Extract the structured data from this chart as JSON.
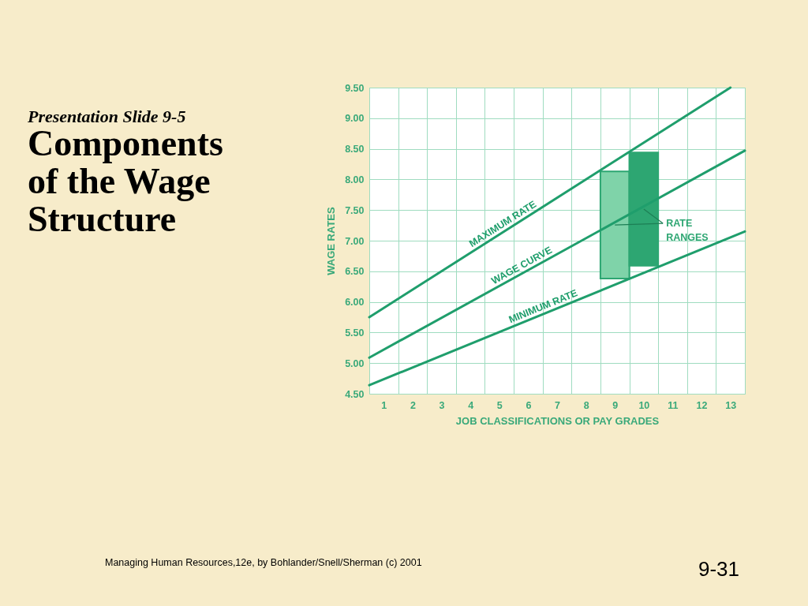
{
  "chart_data": {
    "type": "line",
    "title": "Components of the Wage Structure",
    "subtitle": "Presentation Slide 9-5",
    "xlabel": "JOB CLASSIFICATIONS OR PAY GRADES",
    "ylabel": "WAGE RATES",
    "xlim": [
      0.5,
      13.5
    ],
    "xticks": [
      {
        "value": 0.5,
        "label": null
      },
      1,
      {
        "value": 1.5,
        "label": null
      },
      2,
      {
        "value": 2.5,
        "label": null
      },
      3,
      {
        "value": 3.5,
        "label": null
      },
      4,
      {
        "value": 4.5,
        "label": null
      },
      5,
      {
        "value": 5.5,
        "label": null
      },
      6,
      {
        "value": 6.5,
        "label": null
      },
      7,
      {
        "value": 7.5,
        "label": null
      },
      8,
      {
        "value": 8.5,
        "label": null
      },
      9,
      {
        "value": 9.5,
        "label": null
      },
      10,
      {
        "value": 10.5,
        "label": null
      },
      11,
      {
        "value": 11.5,
        "label": null
      },
      12,
      {
        "value": 12.5,
        "label": null
      },
      13,
      {
        "value": 13.5,
        "label": null
      }
    ],
    "ylim": [
      4.5,
      9.5
    ],
    "yticks": [
      {
        "value": 4.5,
        "label": "4.50"
      },
      {
        "value": 5,
        "label": "5.00"
      },
      {
        "value": 5.5,
        "label": "5.50"
      },
      {
        "value": 6,
        "label": "6.00"
      },
      {
        "value": 6.5,
        "label": "6.50"
      },
      {
        "value": 7,
        "label": "7.00"
      },
      {
        "value": 7.5,
        "label": "7.50"
      },
      {
        "value": 8,
        "label": "8.00"
      },
      {
        "value": 8.5,
        "label": "8.50"
      },
      {
        "value": 9,
        "label": "9.00"
      },
      {
        "value": 9.5,
        "label": "9.50"
      }
    ],
    "grid": true,
    "line_style": "solid",
    "series": [
      {
        "name": "MAXIMUM RATE",
        "color": "#1f9e6c",
        "x": [
          0.5,
          13.0
        ],
        "values": [
          5.75,
          9.5
        ]
      },
      {
        "name": "WAGE CURVE",
        "color": "#1f9e6c",
        "x": [
          0.5,
          13.5
        ],
        "values": [
          5.09,
          8.47
        ]
      },
      {
        "name": "MINIMUM RATE",
        "color": "#1f9e6c",
        "x": [
          0.5,
          13.5
        ],
        "values": [
          4.64,
          7.15
        ]
      },
      {
        "name": "RATE RANGES",
        "type": "bar",
        "x": [
          9,
          10
        ],
        "base": [
          6.38,
          6.59
        ],
        "values": [
          1.75,
          1.85
        ],
        "colors": [
          "#7fd3a9",
          "#2da672"
        ]
      }
    ],
    "annotations": [
      "Managing Human Resources,12e, by Bohlander/Snell/Sherman (c) 2001",
      "9-31"
    ]
  }
}
